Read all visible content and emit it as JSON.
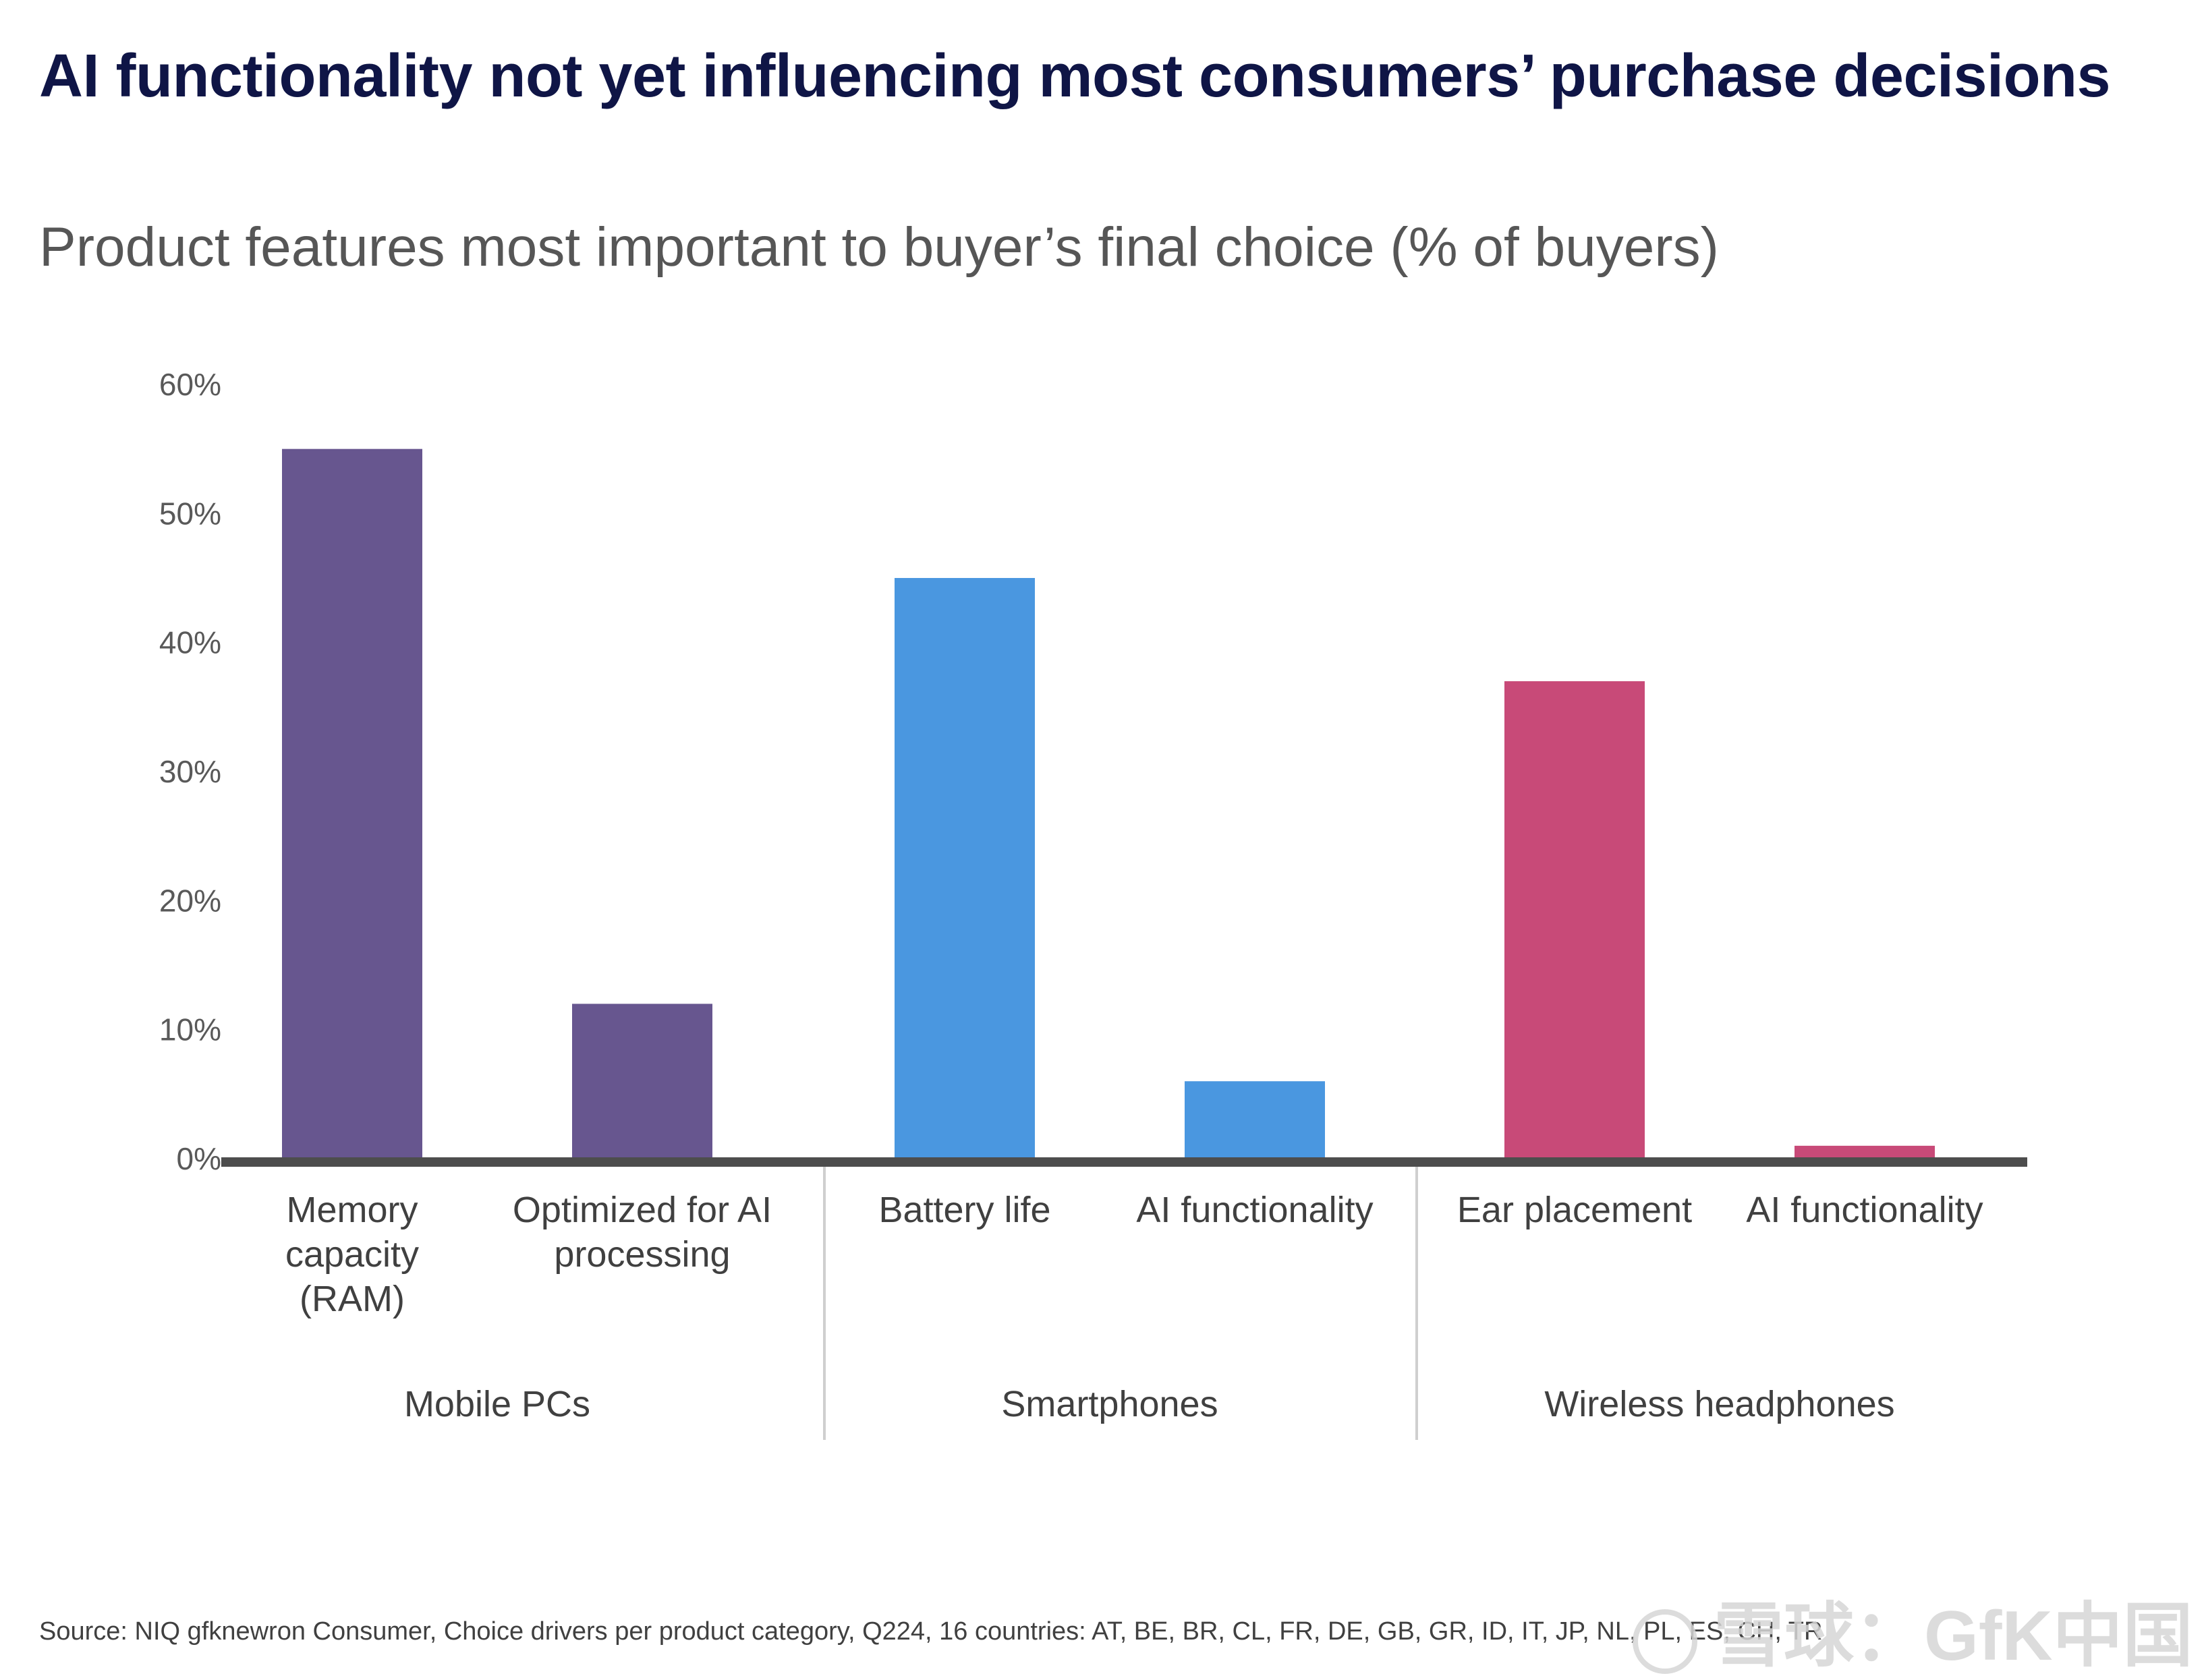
{
  "title": "AI functionality not yet influencing most consumers’ purchase decisions",
  "source": "Source: NIQ gfknewron Consumer, Choice drivers per product category, Q224, 16 countries: AT, BE, BR, CL, FR, DE, GB, GR, ID, IT, JP, NL, PL, ES, CH, TR",
  "watermark": "雪球：GfK中国",
  "chart_data": {
    "type": "bar",
    "title": "Product features most important to buyer’s final choice (% of buyers)",
    "xlabel": "",
    "ylabel": "",
    "ylim": [
      0,
      60
    ],
    "yticks": [
      0,
      10,
      20,
      30,
      40,
      50,
      60
    ],
    "ytick_labels": [
      "0%",
      "10%",
      "20%",
      "30%",
      "40%",
      "50%",
      "60%"
    ],
    "grid": false,
    "legend": "none",
    "groups": [
      {
        "name": "Mobile PCs",
        "color": "#67568f",
        "bars": [
          {
            "label": [
              "Memory",
              "capacity",
              "(RAM)"
            ],
            "value": 55
          },
          {
            "label": [
              "Optimized for AI",
              "processing"
            ],
            "value": 12
          }
        ]
      },
      {
        "name": "Smartphones",
        "color": "#4a97e0",
        "bars": [
          {
            "label": [
              "Battery life"
            ],
            "value": 45
          },
          {
            "label": [
              "AI functionality"
            ],
            "value": 6
          }
        ]
      },
      {
        "name": "Wireless headphones",
        "color": "#c84a78",
        "bars": [
          {
            "label": [
              "Ear placement"
            ],
            "value": 37
          },
          {
            "label": [
              "AI functionality"
            ],
            "value": 1
          }
        ]
      }
    ],
    "colors": {
      "axis": "#4d4d4d",
      "tick_text": "#595959",
      "label_text": "#404040",
      "separator": "#cfcfcf"
    }
  }
}
